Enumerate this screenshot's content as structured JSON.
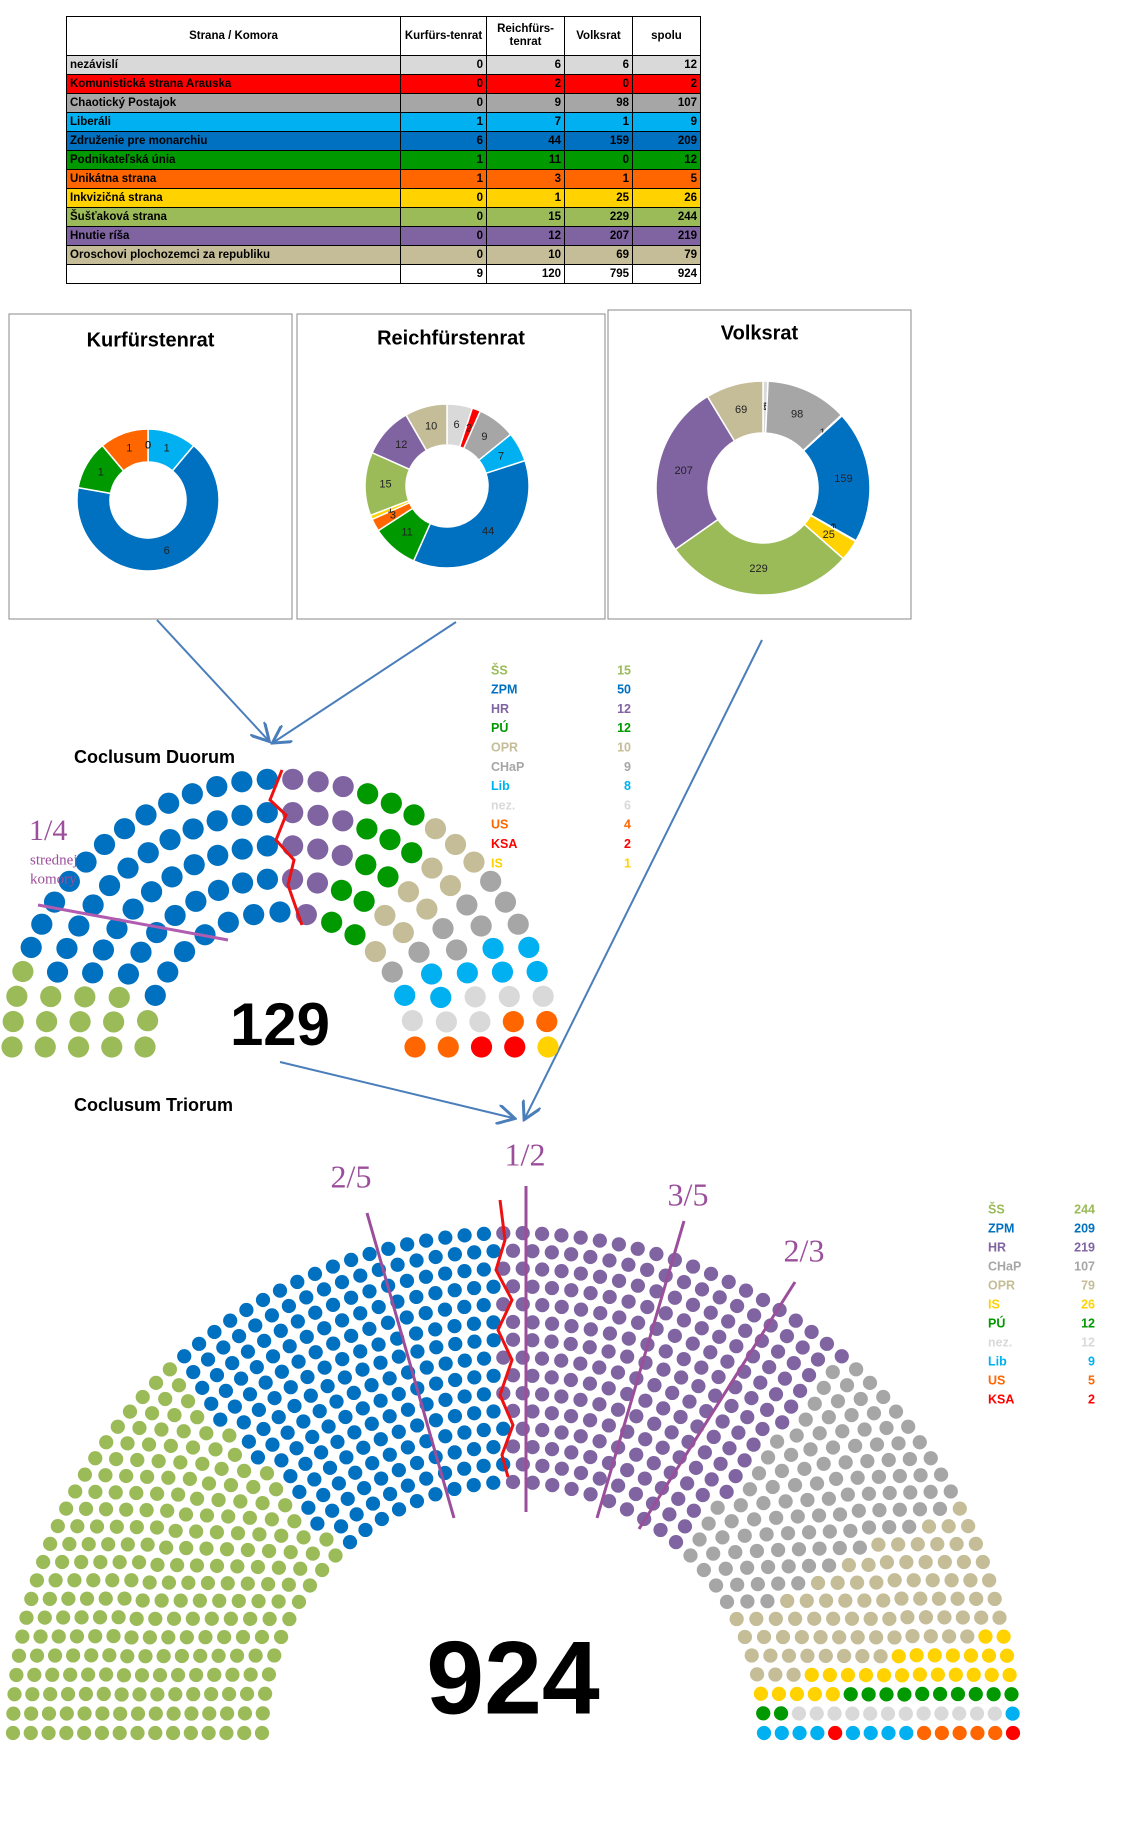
{
  "chart_data": [
    {
      "type": "table",
      "columns": [
        "Strana / Komora",
        "Kurfürs-tenrat",
        "Reichfürs-tenrat",
        "Volksrat",
        "spolu"
      ],
      "rows": [
        {
          "name": "nezávislí",
          "color": "#d9d9d9",
          "values": [
            0,
            6,
            6,
            12
          ]
        },
        {
          "name": "Komunistická strana Arauska",
          "color": "#ff0000",
          "values": [
            0,
            2,
            0,
            2
          ]
        },
        {
          "name": "Chaotický Postajok",
          "color": "#a6a6a6",
          "values": [
            0,
            9,
            98,
            107
          ]
        },
        {
          "name": "Liberáli",
          "color": "#00b0f0",
          "values": [
            1,
            7,
            1,
            9
          ]
        },
        {
          "name": "Združenie pre monarchiu",
          "color": "#0070c0",
          "values": [
            6,
            44,
            159,
            209
          ]
        },
        {
          "name": "Podnikateľská únia",
          "color": "#009900",
          "values": [
            1,
            11,
            0,
            12
          ]
        },
        {
          "name": "Unikátna strana",
          "color": "#ff6600",
          "values": [
            1,
            3,
            1,
            5
          ]
        },
        {
          "name": "Inkvizičná strana",
          "color": "#ffd200",
          "values": [
            0,
            1,
            25,
            26
          ]
        },
        {
          "name": "Šušťaková strana",
          "color": "#9bbb59",
          "values": [
            0,
            15,
            229,
            244
          ]
        },
        {
          "name": "Hnutie ríša",
          "color": "#8064a2",
          "values": [
            0,
            12,
            207,
            219
          ]
        },
        {
          "name": "Oroschovi plochozemci za republiku",
          "color": "#c4bd97",
          "values": [
            0,
            10,
            69,
            79
          ]
        }
      ],
      "totals": [
        9,
        120,
        795,
        924
      ]
    },
    {
      "type": "donut",
      "title": "Kurfürstenrat",
      "colors": [
        "#d9d9d9",
        "#ff0000",
        "#a6a6a6",
        "#00b0f0",
        "#0070c0",
        "#009900",
        "#ff6600",
        "#ffd200",
        "#9bbb59",
        "#8064a2",
        "#c4bd97"
      ],
      "values": [
        0,
        0,
        0,
        1,
        6,
        1,
        1,
        0,
        0,
        0,
        0
      ]
    },
    {
      "type": "donut",
      "title": "Reichfürstenrat",
      "colors": [
        "#d9d9d9",
        "#ff0000",
        "#a6a6a6",
        "#00b0f0",
        "#0070c0",
        "#009900",
        "#ff6600",
        "#ffd200",
        "#9bbb59",
        "#8064a2",
        "#c4bd97"
      ],
      "values": [
        6,
        2,
        9,
        7,
        44,
        11,
        3,
        1,
        15,
        12,
        10
      ]
    },
    {
      "type": "donut",
      "title": "Volksrat",
      "colors": [
        "#d9d9d9",
        "#ff0000",
        "#a6a6a6",
        "#00b0f0",
        "#0070c0",
        "#009900",
        "#ff6600",
        "#ffd200",
        "#9bbb59",
        "#8064a2",
        "#c4bd97"
      ],
      "values": [
        6,
        0,
        98,
        1,
        159,
        0,
        1,
        25,
        229,
        207,
        69
      ]
    },
    {
      "type": "parliament",
      "title": "Coclusum Duorum",
      "total": 129,
      "annotations": [
        "1/4",
        "strednej",
        "komory"
      ],
      "series": [
        {
          "name": "ŠS",
          "color": "#9bbb59",
          "value": 15
        },
        {
          "name": "ZPM",
          "color": "#0070c0",
          "value": 50
        },
        {
          "name": "HR",
          "color": "#8064a2",
          "value": 12
        },
        {
          "name": "PÚ",
          "color": "#009900",
          "value": 12
        },
        {
          "name": "OPR",
          "color": "#c4bd97",
          "value": 10
        },
        {
          "name": "CHaP",
          "color": "#a6a6a6",
          "value": 9
        },
        {
          "name": "Lib",
          "color": "#00b0f0",
          "value": 8
        },
        {
          "name": "nez.",
          "color": "#d9d9d9",
          "value": 6
        },
        {
          "name": "US",
          "color": "#ff6600",
          "value": 4
        },
        {
          "name": "KSA",
          "color": "#ff0000",
          "value": 2
        },
        {
          "name": "IS",
          "color": "#ffd200",
          "value": 1
        }
      ]
    },
    {
      "type": "parliament",
      "title": "Coclusum Triorum",
      "total": 924,
      "annotations": [
        "1/2",
        "2/5",
        "3/5",
        "2/3"
      ],
      "series": [
        {
          "name": "ŠS",
          "color": "#9bbb59",
          "value": 244
        },
        {
          "name": "ZPM",
          "color": "#0070c0",
          "value": 209
        },
        {
          "name": "HR",
          "color": "#8064a2",
          "value": 219
        },
        {
          "name": "CHaP",
          "color": "#a6a6a6",
          "value": 107
        },
        {
          "name": "OPR",
          "color": "#c4bd97",
          "value": 79
        },
        {
          "name": "IS",
          "color": "#ffd200",
          "value": 26
        },
        {
          "name": "PÚ",
          "color": "#009900",
          "value": 12
        },
        {
          "name": "nez.",
          "color": "#d9d9d9",
          "value": 12
        },
        {
          "name": "Lib",
          "color": "#00b0f0",
          "value": 9
        },
        {
          "name": "US",
          "color": "#ff6600",
          "value": 5
        },
        {
          "name": "KSA",
          "color": "#ff0000",
          "value": 2
        }
      ]
    }
  ]
}
